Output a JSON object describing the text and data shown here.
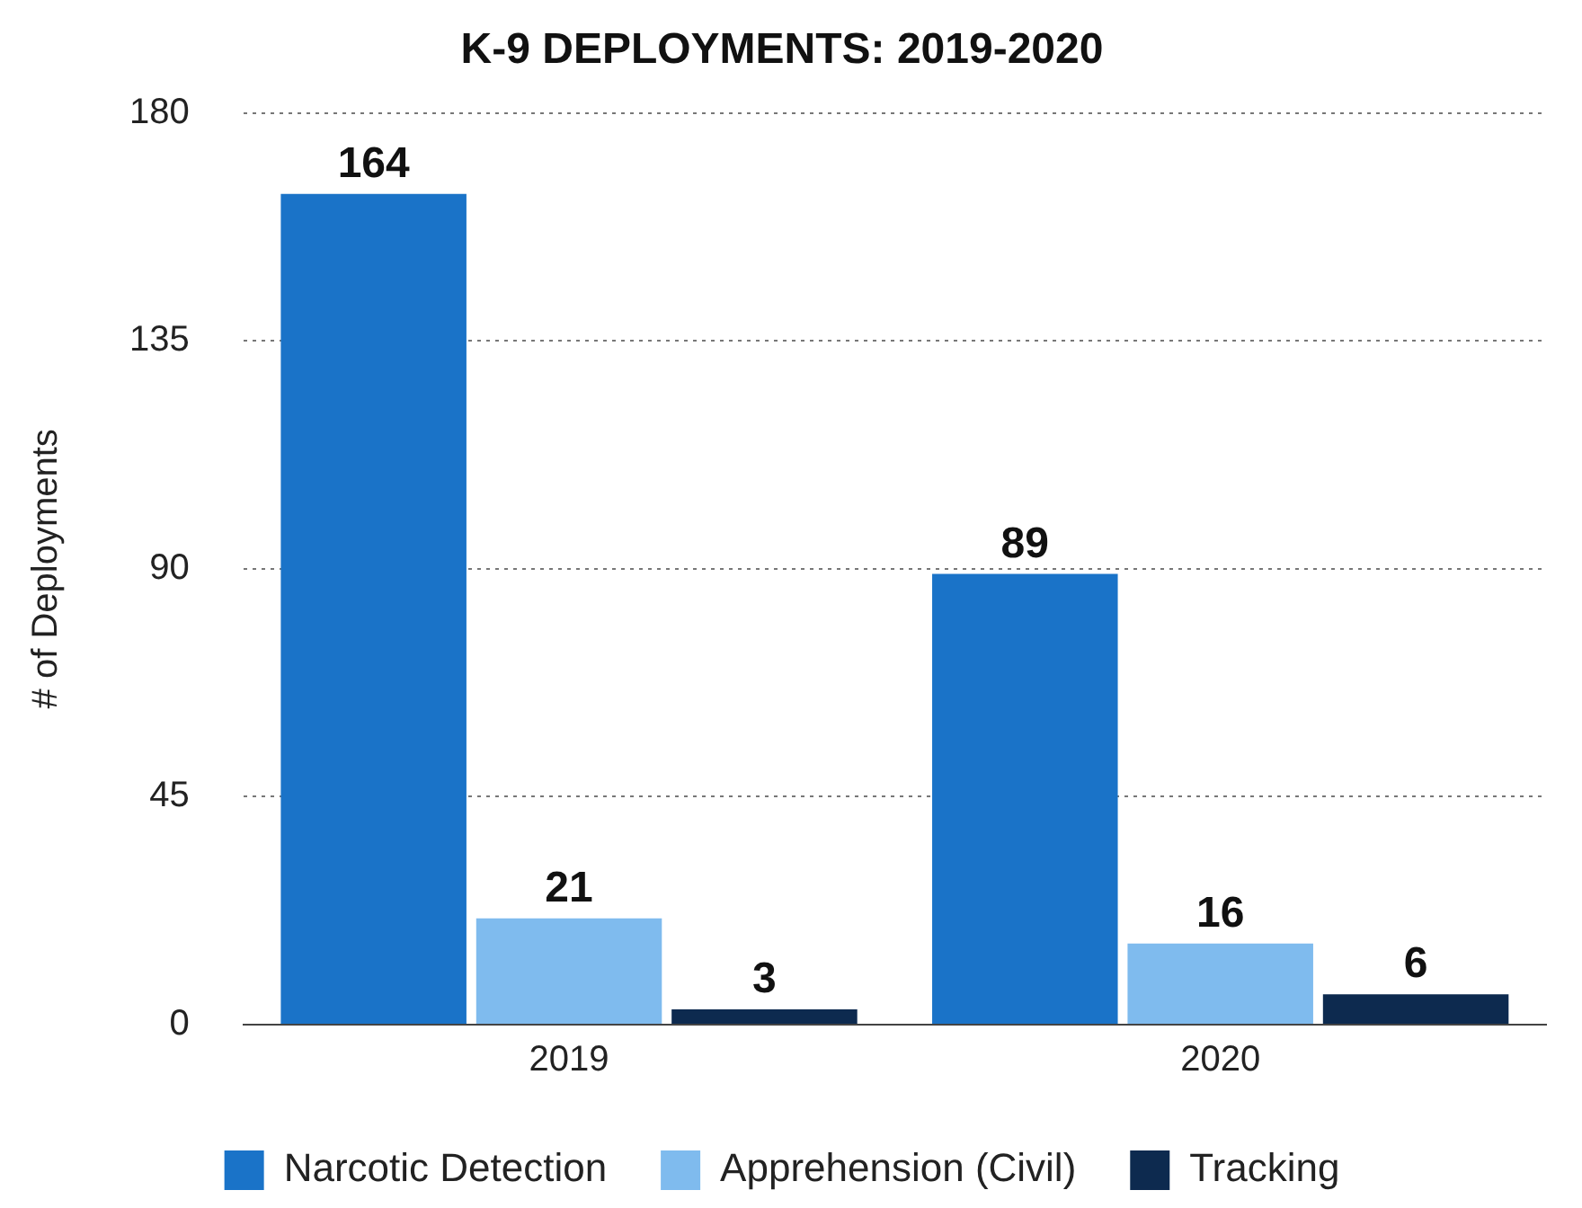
{
  "chart_data": {
    "type": "bar",
    "title": "K-9 DEPLOYMENTS: 2019-2020",
    "ylabel": "# of Deployments",
    "categories": [
      "2019",
      "2020"
    ],
    "series": [
      {
        "name": "Narcotic Detection",
        "color": "#1a73c8",
        "values": [
          164,
          89
        ]
      },
      {
        "name": "Apprehension (Civil)",
        "color": "#7fbbee",
        "values": [
          21,
          16
        ]
      },
      {
        "name": "Tracking",
        "color": "#0d2a4f",
        "values": [
          3,
          6
        ]
      }
    ],
    "ylim": [
      0,
      180
    ],
    "yticks": [
      0,
      45,
      90,
      135,
      180
    ],
    "grid": "y",
    "legend": "bottom",
    "data_labels": true
  }
}
